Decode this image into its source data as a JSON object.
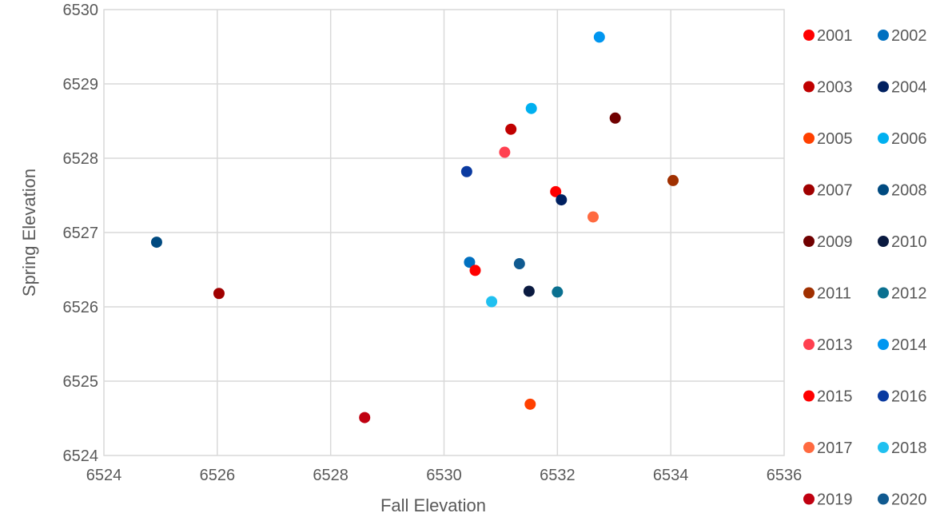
{
  "chart_data": {
    "type": "scatter",
    "title": "",
    "xlabel": "Fall Elevation",
    "ylabel": "Spring Elevation",
    "xlim": [
      6524,
      6536
    ],
    "ylim": [
      6524,
      6530
    ],
    "xticks": [
      6524,
      6526,
      6528,
      6530,
      6532,
      6534,
      6536
    ],
    "yticks": [
      6524,
      6525,
      6526,
      6527,
      6528,
      6529,
      6530
    ],
    "grid": true,
    "legend_position": "right",
    "series": [
      {
        "name": "2001",
        "color": "#ff0000",
        "x": 6531.97,
        "y": 6527.55
      },
      {
        "name": "2002",
        "color": "#0070c0",
        "x": 6530.45,
        "y": 6526.6
      },
      {
        "name": "2003",
        "color": "#c00000",
        "x": 6531.18,
        "y": 6528.39
      },
      {
        "name": "2004",
        "color": "#002060",
        "x": 6532.07,
        "y": 6527.44
      },
      {
        "name": "2005",
        "color": "#ff4000",
        "x": 6531.52,
        "y": 6524.69
      },
      {
        "name": "2006",
        "color": "#00b0f0",
        "x": 6531.54,
        "y": 6528.67
      },
      {
        "name": "2007",
        "color": "#a00000",
        "x": 6526.03,
        "y": 6526.18
      },
      {
        "name": "2008",
        "color": "#004a80",
        "x": 6524.93,
        "y": 6526.87
      },
      {
        "name": "2009",
        "color": "#700000",
        "x": 6533.02,
        "y": 6528.54
      },
      {
        "name": "2010",
        "color": "#0a1a40",
        "x": 6531.5,
        "y": 6526.21
      },
      {
        "name": "2011",
        "color": "#a03000",
        "x": 6534.04,
        "y": 6527.7
      },
      {
        "name": "2012",
        "color": "#0a7090",
        "x": 6532.0,
        "y": 6526.2
      },
      {
        "name": "2013",
        "color": "#ff4050",
        "x": 6531.07,
        "y": 6528.08
      },
      {
        "name": "2014",
        "color": "#0096f0",
        "x": 6532.74,
        "y": 6529.63
      },
      {
        "name": "2015",
        "color": "#ff0000",
        "x": 6530.55,
        "y": 6526.49
      },
      {
        "name": "2016",
        "color": "#0a3aa0",
        "x": 6530.4,
        "y": 6527.82
      },
      {
        "name": "2017",
        "color": "#ff6a40",
        "x": 6532.63,
        "y": 6527.21
      },
      {
        "name": "2018",
        "color": "#20c0f0",
        "x": 6530.84,
        "y": 6526.07
      },
      {
        "name": "2019",
        "color": "#c00010",
        "x": 6528.6,
        "y": 6524.51
      },
      {
        "name": "2020",
        "color": "#105a90",
        "x": 6531.33,
        "y": 6526.58
      }
    ]
  }
}
